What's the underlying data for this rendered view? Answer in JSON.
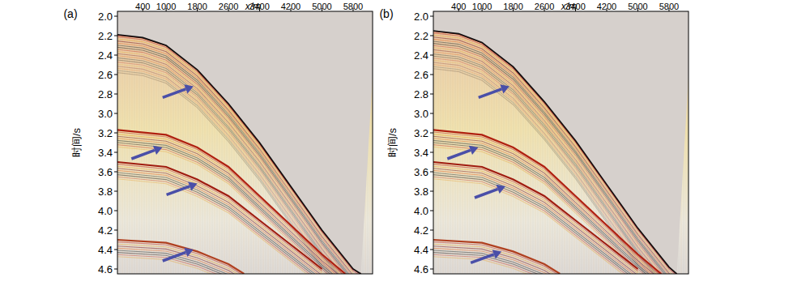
{
  "chart_data": [
    {
      "type": "seismic",
      "title": "(a)",
      "x_label": "x/m",
      "y_label": "时间/s",
      "xlim": [
        -250,
        6300
      ],
      "ylim": [
        1.95,
        4.65
      ],
      "xticks": [
        400,
        1000,
        1800,
        2600,
        3400,
        4200,
        5000,
        5800
      ],
      "yticks": [
        {
          "value": 2,
          "label": "2.0"
        },
        2.2,
        2.4,
        2.6,
        2.8,
        {
          "value": 3,
          "label": "3.0"
        },
        3.2,
        3.4,
        3.6,
        3.8,
        {
          "value": 4,
          "label": "4.0"
        },
        4.2,
        4.4,
        4.6
      ],
      "series": [
        {
          "color": "#9a1010",
          "x": [
            -250,
            400,
            1000,
            1800,
            2600,
            3400,
            4200,
            5000,
            5800,
            6000
          ],
          "values": [
            2.19,
            2.22,
            2.3,
            2.55,
            2.9,
            3.3,
            3.75,
            4.2,
            4.6,
            4.65
          ]
        },
        {
          "color": "#b02010",
          "x": [
            -250,
            1000,
            1800,
            2600,
            3400,
            4200,
            5000,
            5600
          ],
          "values": [
            3.17,
            3.22,
            3.35,
            3.55,
            3.85,
            4.15,
            4.45,
            4.65
          ]
        },
        {
          "color": "#a01c10",
          "x": [
            -250,
            1000,
            1800,
            2600,
            3400,
            4200,
            5000
          ],
          "values": [
            3.5,
            3.55,
            3.68,
            3.85,
            4.1,
            4.35,
            4.6
          ]
        },
        {
          "color": "#b04020",
          "x": [
            -250,
            1000,
            1800,
            2600,
            3000
          ],
          "values": [
            4.3,
            4.33,
            4.42,
            4.55,
            4.65
          ]
        }
      ],
      "arrows": {
        "x": [
          1700,
          900,
          1800,
          1700
        ],
        "values": [
          2.72,
          3.35,
          3.72,
          4.4
        ]
      }
    },
    {
      "type": "seismic",
      "title": "(b)",
      "x_label": "x/m",
      "y_label": "时间/s",
      "xlim": [
        -250,
        6300
      ],
      "ylim": [
        1.95,
        4.65
      ],
      "xticks": [
        400,
        1000,
        1800,
        2600,
        3400,
        4200,
        5000,
        5800
      ],
      "yticks": [
        {
          "value": 2,
          "label": "2.0"
        },
        2.2,
        2.4,
        2.6,
        2.8,
        {
          "value": 3,
          "label": "3.0"
        },
        3.2,
        3.4,
        3.6,
        3.8,
        {
          "value": 4,
          "label": "4.0"
        },
        4.2,
        4.4,
        4.6
      ],
      "series": [
        {
          "color": "#9a1010",
          "x": [
            -250,
            400,
            1000,
            1800,
            2600,
            3400,
            4200,
            5000,
            5800,
            6000
          ],
          "values": [
            2.15,
            2.18,
            2.27,
            2.52,
            2.88,
            3.28,
            3.73,
            4.18,
            4.58,
            4.65
          ]
        },
        {
          "color": "#b02010",
          "x": [
            -250,
            1000,
            1800,
            2600,
            3400,
            4200,
            5000,
            5600
          ],
          "values": [
            3.17,
            3.22,
            3.35,
            3.55,
            3.85,
            4.15,
            4.45,
            4.65
          ]
        },
        {
          "color": "#a01c10",
          "x": [
            -250,
            1000,
            1800,
            2600,
            3400,
            4200,
            5000
          ],
          "values": [
            3.5,
            3.55,
            3.68,
            3.85,
            4.1,
            4.35,
            4.6
          ]
        },
        {
          "color": "#b04020",
          "x": [
            -250,
            1000,
            1800,
            2600,
            3000
          ],
          "values": [
            4.3,
            4.33,
            4.42,
            4.55,
            4.65
          ]
        }
      ],
      "arrows": {
        "x": [
          1700,
          900,
          1600,
          1500
        ],
        "values": [
          2.72,
          3.35,
          3.75,
          4.42
        ]
      }
    }
  ]
}
